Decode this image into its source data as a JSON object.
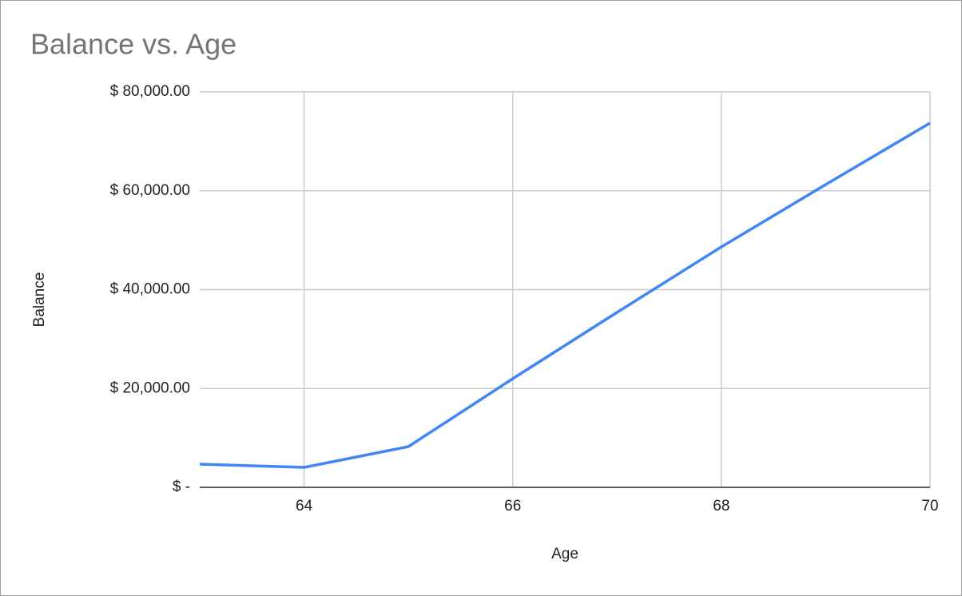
{
  "chart_data": {
    "type": "line",
    "title": "Balance vs. Age",
    "x_label": "Age",
    "y_label": "Balance",
    "x": [
      63,
      64,
      65,
      66,
      67,
      68,
      69,
      70
    ],
    "series": [
      {
        "name": "Balance",
        "color": "#4285f4",
        "values": [
          4690,
          4040,
          8240,
          21980,
          35400,
          48650,
          61250,
          73700
        ]
      }
    ],
    "xlim": [
      63,
      70
    ],
    "xticks": [
      64,
      66,
      68,
      70
    ],
    "ylim": [
      0,
      80000
    ],
    "yticks": [
      {
        "value": 0,
        "label": "$ -"
      },
      {
        "value": 20000,
        "label": "$ 20,000.00"
      },
      {
        "value": 40000,
        "label": "$ 40,000.00"
      },
      {
        "value": 60000,
        "label": "$ 60,000.00"
      },
      {
        "value": 80000,
        "label": "$ 80,000.00"
      }
    ],
    "grid": true
  }
}
